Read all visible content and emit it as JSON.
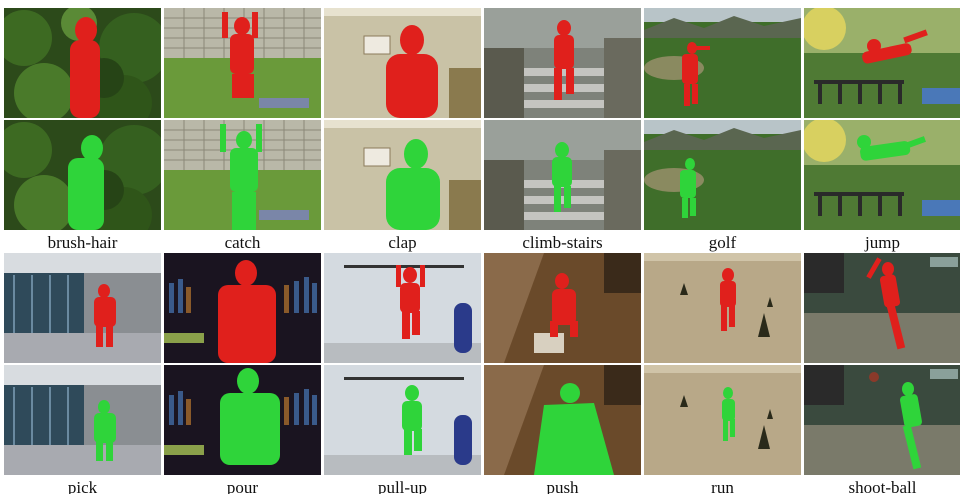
{
  "rows": [
    {
      "actions": [
        {
          "label": "brush-hair"
        },
        {
          "label": "catch"
        },
        {
          "label": "clap"
        },
        {
          "label": "climb-stairs"
        },
        {
          "label": "golf"
        },
        {
          "label": "jump"
        }
      ]
    },
    {
      "actions": [
        {
          "label": "pick"
        },
        {
          "label": "pour"
        },
        {
          "label": "pull-up"
        },
        {
          "label": "push"
        },
        {
          "label": "run"
        },
        {
          "label": "shoot-ball"
        }
      ]
    }
  ],
  "colors": {
    "prediction_mask": "#e0201c",
    "ground_truth_mask": "#2fd43a"
  }
}
